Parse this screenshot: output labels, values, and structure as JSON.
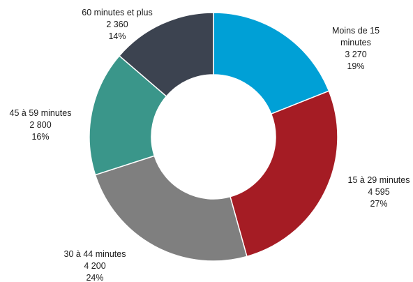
{
  "chart_data": {
    "type": "pie",
    "variant": "donut",
    "title": "",
    "legend": "none",
    "slices": [
      {
        "label_lines": [
          "Moins de 15",
          "minutes"
        ],
        "value": 3270,
        "value_text": "3 270",
        "percent": 19,
        "percent_text": "19%",
        "color": "#00a0d6"
      },
      {
        "label_lines": [
          "15 à 29 minutes"
        ],
        "value": 4595,
        "value_text": "4 595",
        "percent": 27,
        "percent_text": "27%",
        "color": "#a51c24"
      },
      {
        "label_lines": [
          "30 à 44 minutes"
        ],
        "value": 4200,
        "value_text": "4 200",
        "percent": 24,
        "percent_text": "24%",
        "color": "#7f7f7f"
      },
      {
        "label_lines": [
          "45 à 59 minutes"
        ],
        "value": 2800,
        "value_text": "2 800",
        "percent": 16,
        "percent_text": "16%",
        "color": "#3a968a"
      },
      {
        "label_lines": [
          "60 minutes et plus"
        ],
        "value": 2360,
        "value_text": "2 360",
        "percent": 14,
        "percent_text": "14%",
        "color": "#3c4350"
      }
    ]
  }
}
